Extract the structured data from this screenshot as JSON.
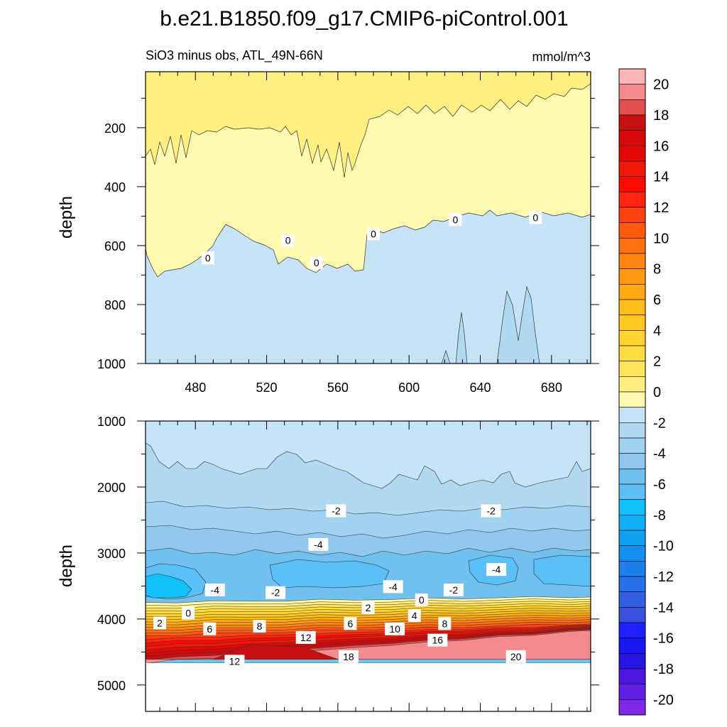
{
  "chart_data": {
    "type": "contour",
    "title": "b.e21.B1850.f09_g17.CMIP6-piControl.001",
    "subtitle_left": "SiO3 minus obs, ATL_49N-66N",
    "units": "mmol/m^3",
    "xlim": [
      452,
      702
    ],
    "x_ticks": [
      480,
      520,
      560,
      600,
      640,
      680
    ],
    "top_panel": {
      "ylabel": "depth",
      "ylim": [
        10,
        1000
      ],
      "y_ticks": [
        200,
        400,
        600,
        800,
        1000
      ],
      "contour_labels": [
        {
          "text": "0",
          "x": 487,
          "y": 642
        },
        {
          "text": "0",
          "x": 532,
          "y": 582
        },
        {
          "text": "0",
          "x": 548,
          "y": 658
        },
        {
          "text": "0",
          "x": 580,
          "y": 560
        },
        {
          "text": "0",
          "x": 626,
          "y": 512
        },
        {
          "text": "0",
          "x": 671,
          "y": 505
        }
      ]
    },
    "bottom_panel": {
      "ylabel": "depth",
      "ylim": [
        1000,
        5400
      ],
      "y_ticks": [
        1000,
        2000,
        3000,
        4000,
        5000
      ],
      "data_bottom_depth": 4610,
      "contour_labels": [
        {
          "text": "-2",
          "x": 559,
          "y": 2360
        },
        {
          "text": "-2",
          "x": 646,
          "y": 2360
        },
        {
          "text": "-4",
          "x": 549,
          "y": 2870
        },
        {
          "text": "-4",
          "x": 649,
          "y": 3250
        },
        {
          "text": "-4",
          "x": 491,
          "y": 3560
        },
        {
          "text": "-4",
          "x": 591,
          "y": 3510
        },
        {
          "text": "-2",
          "x": 525,
          "y": 3600
        },
        {
          "text": "-2",
          "x": 625,
          "y": 3560
        },
        {
          "text": "0",
          "x": 607,
          "y": 3710
        },
        {
          "text": "0",
          "x": 476,
          "y": 3910
        },
        {
          "text": "2",
          "x": 460,
          "y": 4060
        },
        {
          "text": "2",
          "x": 577,
          "y": 3830
        },
        {
          "text": "4",
          "x": 603,
          "y": 3950
        },
        {
          "text": "6",
          "x": 488,
          "y": 4150
        },
        {
          "text": "6",
          "x": 567,
          "y": 4070
        },
        {
          "text": "8",
          "x": 516,
          "y": 4110
        },
        {
          "text": "8",
          "x": 620,
          "y": 4070
        },
        {
          "text": "10",
          "x": 592,
          "y": 4150
        },
        {
          "text": "12",
          "x": 542,
          "y": 4280
        },
        {
          "text": "16",
          "x": 616,
          "y": 4320
        },
        {
          "text": "12",
          "x": 502,
          "y": 4640
        },
        {
          "text": "18",
          "x": 566,
          "y": 4570
        },
        {
          "text": "20",
          "x": 660,
          "y": 4570
        }
      ]
    },
    "colorbar": {
      "labels": [
        "20",
        "18",
        "16",
        "14",
        "12",
        "10",
        "8",
        "6",
        "4",
        "2",
        "0",
        "-2",
        "-4",
        "-6",
        "-8",
        "-10",
        "-12",
        "-14",
        "-16",
        "-18",
        "-20"
      ],
      "levels": [
        21,
        20,
        19,
        18,
        17,
        16,
        15,
        14,
        13,
        12,
        11,
        10,
        9,
        8,
        7,
        6,
        5,
        4,
        3,
        2,
        1,
        0,
        -1,
        -2,
        -3,
        -4,
        -5,
        -6,
        -7,
        -8,
        -9,
        -10,
        -11,
        -12,
        -13,
        -14,
        -15,
        -16,
        -17,
        -18,
        -19,
        -20,
        -21
      ],
      "colors": [
        "#ffb4b8",
        "#f58a8e",
        "#e05050",
        "#c81010",
        "#d80808",
        "#e50808",
        "#f21808",
        "#ff0a00",
        "#ff2410",
        "#ff4010",
        "#ff5a10",
        "#ff7010",
        "#ff8410",
        "#ff9a10",
        "#ffaa10",
        "#ffbb18",
        "#ffc820",
        "#ffd42c",
        "#ffdc40",
        "#ffe458",
        "#ffee80",
        "#fffab0",
        "#c6e4f5",
        "#b0d9ef",
        "#9fd2ef",
        "#8fc8ec",
        "#70c0f0",
        "#5cc0f8",
        "#10c0f8",
        "#10b0f8",
        "#10a0f0",
        "#1490f0",
        "#1c80ec",
        "#2470e8",
        "#3060e0",
        "#3850dc",
        "#2020ff",
        "#1a14f0",
        "#2814e0",
        "#4a18e0",
        "#6020e8",
        "#8028e8"
      ]
    }
  }
}
